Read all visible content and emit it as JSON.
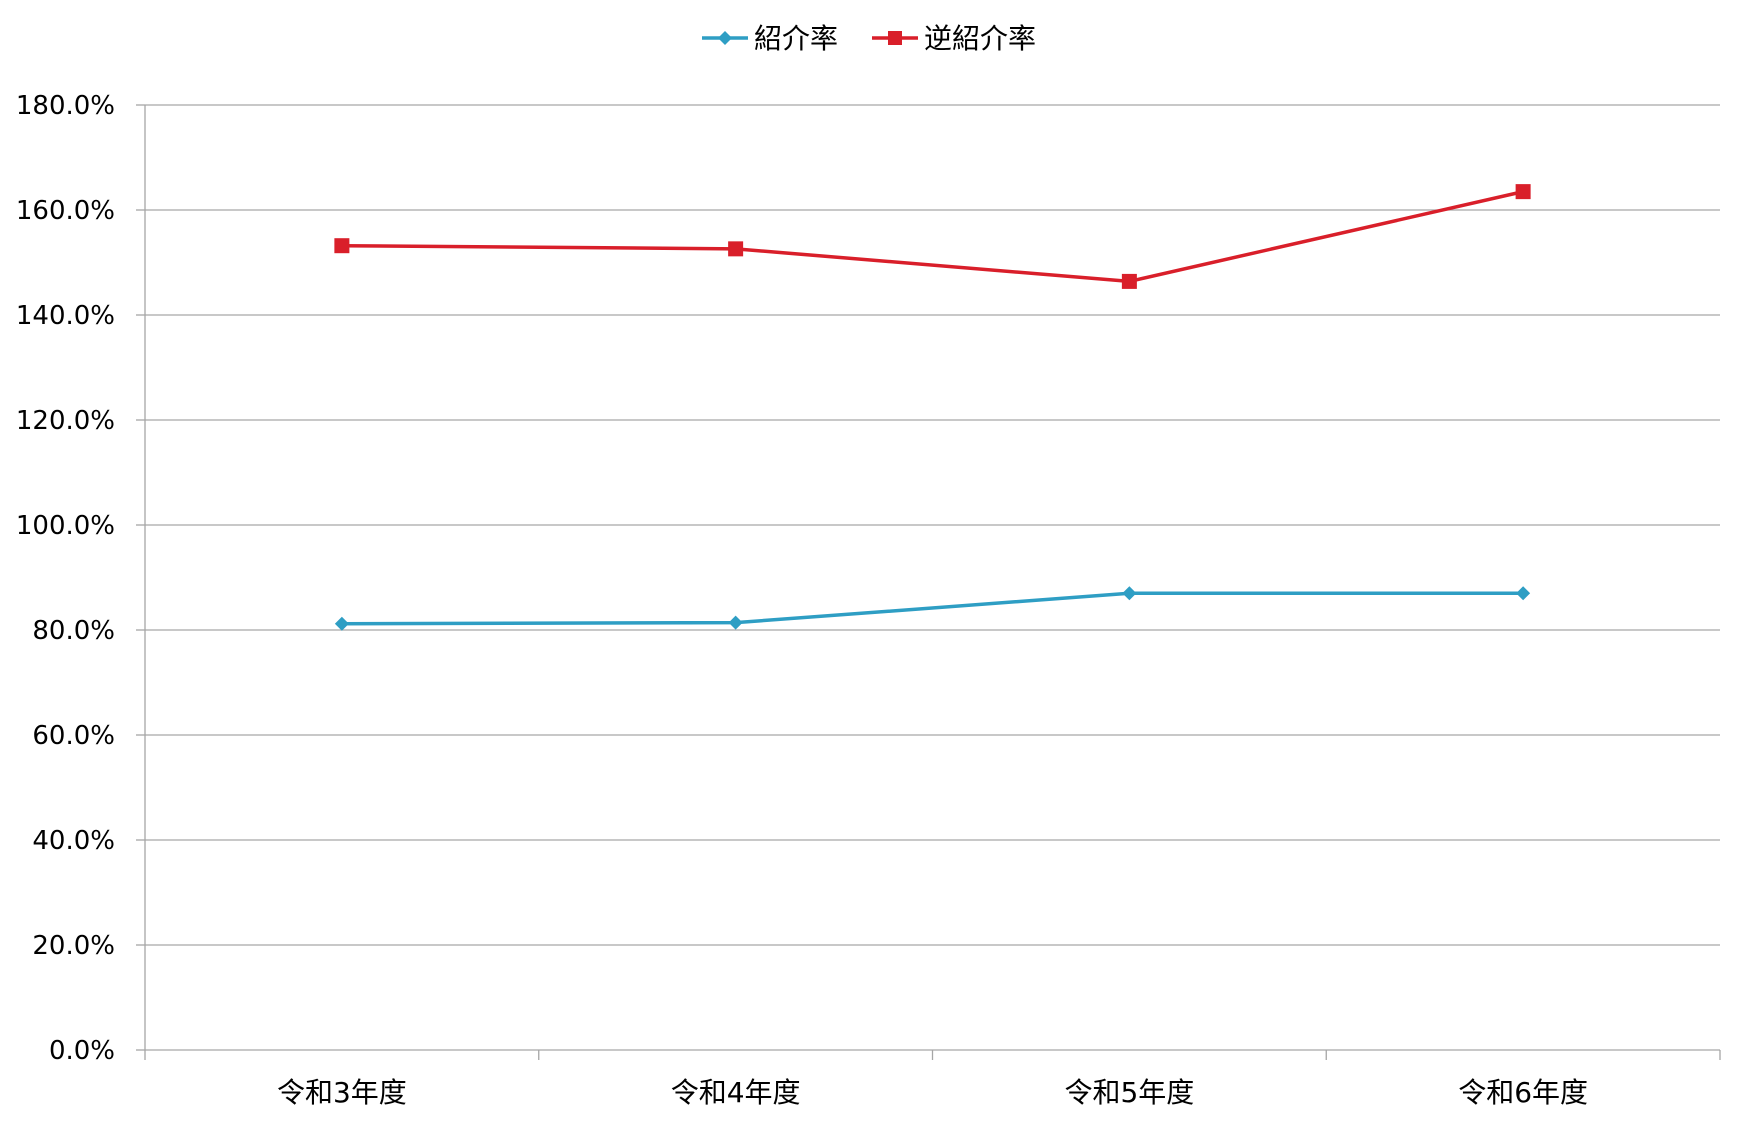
{
  "chart_data": {
    "type": "line",
    "title": "",
    "xlabel": "",
    "ylabel": "",
    "categories": [
      "令和3年度",
      "令和4年度",
      "令和5年度",
      "令和6年度"
    ],
    "y_ticks": [
      "0.0%",
      "20.0%",
      "40.0%",
      "60.0%",
      "80.0%",
      "100.0%",
      "120.0%",
      "140.0%",
      "160.0%",
      "180.0%"
    ],
    "ylim": [
      0,
      180
    ],
    "y_unit": "%",
    "grid": true,
    "legend_position": "top-center",
    "series": [
      {
        "name": "紹介率",
        "values": [
          81.2,
          81.4,
          87.0,
          87.0
        ],
        "color": "#2e9ec4",
        "marker": "diamond"
      },
      {
        "name": "逆紹介率",
        "values": [
          153.2,
          152.6,
          146.4,
          163.5
        ],
        "color": "#d91f2a",
        "marker": "square"
      }
    ]
  }
}
